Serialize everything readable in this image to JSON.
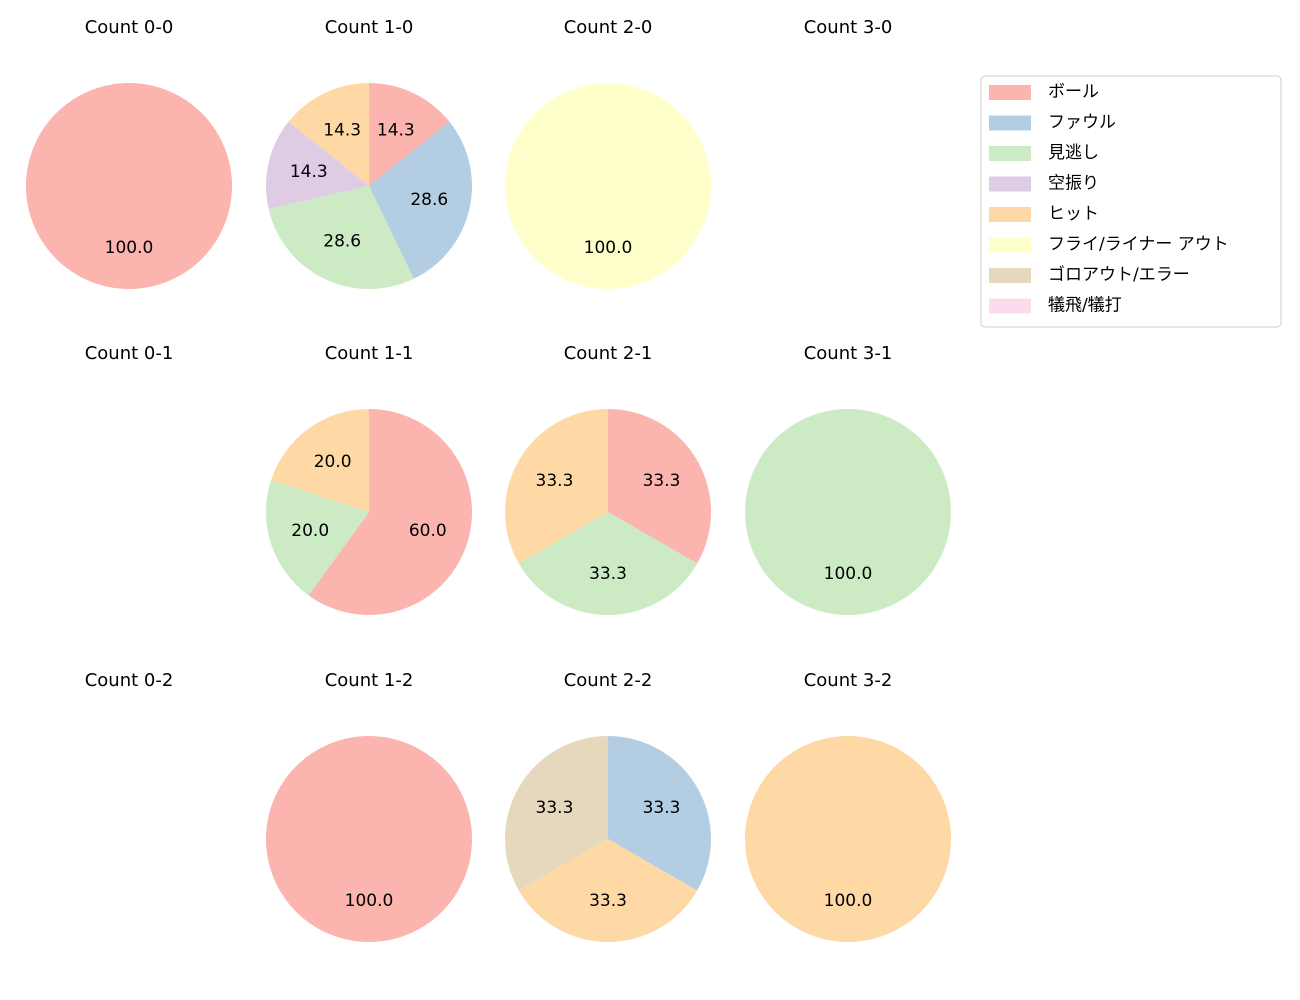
{
  "chart_data": [
    {
      "type": "pie",
      "title": "Count 0-0",
      "values": [
        100
      ],
      "value_labels": [
        "100.0"
      ],
      "colors": [
        "#fbb4ae"
      ]
    },
    {
      "type": "pie",
      "title": "Count 1-0",
      "values": [
        14.3,
        28.6,
        28.6,
        14.3,
        14.3
      ],
      "value_labels": [
        "14.3",
        "28.6",
        "28.6",
        "14.3",
        "14.3"
      ],
      "colors": [
        "#fbb4ae",
        "#b3cde3",
        "#ccebc5",
        "#decbe4",
        "#fed9a6"
      ]
    },
    {
      "type": "pie",
      "title": "Count 2-0",
      "values": [
        100
      ],
      "value_labels": [
        "100.0"
      ],
      "colors": [
        "#ffffcc"
      ]
    },
    {
      "type": "pie",
      "title": "Count 3-0",
      "values": [],
      "value_labels": [],
      "colors": []
    },
    {
      "type": "pie",
      "title": "Count 0-1",
      "values": [],
      "value_labels": [],
      "colors": []
    },
    {
      "type": "pie",
      "title": "Count 1-1",
      "values": [
        60,
        20,
        20
      ],
      "value_labels": [
        "60.0",
        "20.0",
        "20.0"
      ],
      "colors": [
        "#fbb4ae",
        "#ccebc5",
        "#fed9a6"
      ]
    },
    {
      "type": "pie",
      "title": "Count 2-1",
      "values": [
        33.3,
        33.3,
        33.3
      ],
      "value_labels": [
        "33.3",
        "33.3",
        "33.3"
      ],
      "colors": [
        "#fbb4ae",
        "#ccebc5",
        "#fed9a6"
      ]
    },
    {
      "type": "pie",
      "title": "Count 3-1",
      "values": [
        100
      ],
      "value_labels": [
        "100.0"
      ],
      "colors": [
        "#ccebc5"
      ]
    },
    {
      "type": "pie",
      "title": "Count 0-2",
      "values": [],
      "value_labels": [],
      "colors": []
    },
    {
      "type": "pie",
      "title": "Count 1-2",
      "values": [
        100
      ],
      "value_labels": [
        "100.0"
      ],
      "colors": [
        "#fbb4ae"
      ]
    },
    {
      "type": "pie",
      "title": "Count 2-2",
      "values": [
        33.3,
        33.3,
        33.3
      ],
      "value_labels": [
        "33.3",
        "33.3",
        "33.3"
      ],
      "colors": [
        "#b3cde3",
        "#fed9a6",
        "#e5d8bd"
      ]
    },
    {
      "type": "pie",
      "title": "Count 3-2",
      "values": [
        100
      ],
      "value_labels": [
        "100.0"
      ],
      "colors": [
        "#fed9a6"
      ]
    }
  ],
  "legend": {
    "labels": [
      "ボール",
      "ファウル",
      "見逃し",
      "空振り",
      "ヒット",
      "フライ/ライナー アウト",
      "ゴロアウト/エラー",
      "犠飛/犠打"
    ],
    "colors": [
      "#fbb4ae",
      "#b3cde3",
      "#ccebc5",
      "#decbe4",
      "#fed9a6",
      "#ffffcc",
      "#e5d8bd",
      "#fddaec"
    ]
  }
}
